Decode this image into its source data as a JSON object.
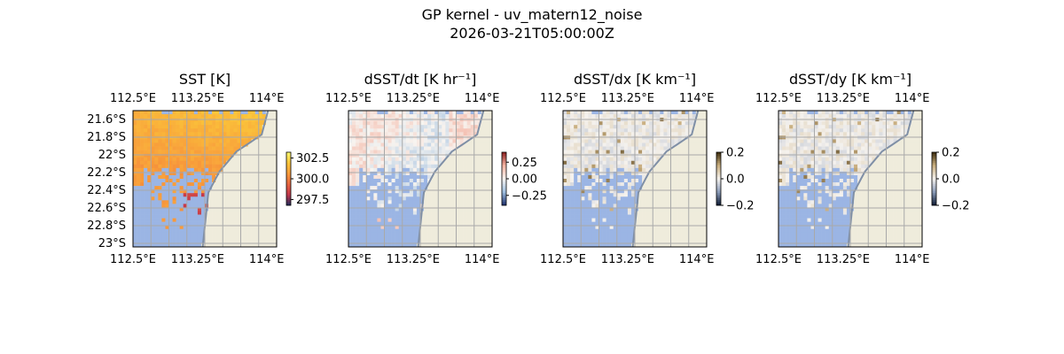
{
  "figure": {
    "title_line1": "GP kernel - uv_matern12_noise",
    "title_line2": "2026-03-21T05:00:00Z"
  },
  "colors": {
    "land": "#efecdc",
    "coast": "#7f8fa6",
    "masked_ocean": "#9bb5e4",
    "grid": "#a9a9a9",
    "sst_cmap": [
      "#1f2a5c",
      "#c2364b",
      "#e7653f",
      "#f89c3b",
      "#fbc63a",
      "#f9f871"
    ],
    "dsst_dt_cmap": [
      "#1b2d6b",
      "#9fbfe0",
      "#f7f4f0",
      "#f4b3a2",
      "#8c1d1d"
    ],
    "grad_cmap": [
      "#0d1a33",
      "#8a9bb8",
      "#f5f2ee",
      "#c8ad7d",
      "#3a2a0b"
    ]
  },
  "chart_data": [
    {
      "type": "heatmap",
      "title": "SST [K]",
      "lon_ticks": [
        "112.5°E",
        "113.25°E",
        "114°E"
      ],
      "lat_ticks": [
        "21.6°S",
        "21.8°S",
        "22°S",
        "22.2°S",
        "22.4°S",
        "22.6°S",
        "22.8°S",
        "23°S"
      ],
      "show_lat_labels": true,
      "colorbar": {
        "ticks": [
          "302.5",
          "300.0",
          "297.5"
        ],
        "vmin": 296.8,
        "vmax": 303.2
      },
      "values_note": "",
      "field": "sst",
      "grid": true
    },
    {
      "type": "heatmap",
      "title": "dSST/dt [K hr⁻¹]",
      "lon_ticks": [
        "112.5°E",
        "113.25°E",
        "114°E"
      ],
      "lat_ticks": [],
      "show_lat_labels": false,
      "colorbar": {
        "ticks": [
          "0.25",
          "0.00",
          "−0.25"
        ],
        "vmin": -0.4,
        "vmax": 0.4
      },
      "field": "dt",
      "grid": true
    },
    {
      "type": "heatmap",
      "title": "dSST/dx [K km⁻¹]",
      "lon_ticks": [
        "112.5°E",
        "113.25°E",
        "114°E"
      ],
      "lat_ticks": [],
      "show_lat_labels": false,
      "colorbar": {
        "ticks": [
          "0.2",
          "0.0",
          "−0.2"
        ],
        "vmin": -0.2,
        "vmax": 0.2
      },
      "field": "dx",
      "grid": true
    },
    {
      "type": "heatmap",
      "title": "dSST/dy [K km⁻¹]",
      "lon_ticks": [
        "112.5°E",
        "113.25°E",
        "114°E"
      ],
      "lat_ticks": [],
      "show_lat_labels": false,
      "colorbar": {
        "ticks": [
          "0.2",
          "0.0",
          "−0.2"
        ],
        "vmin": -0.2,
        "vmax": 0.2
      },
      "field": "dy",
      "grid": true
    }
  ]
}
